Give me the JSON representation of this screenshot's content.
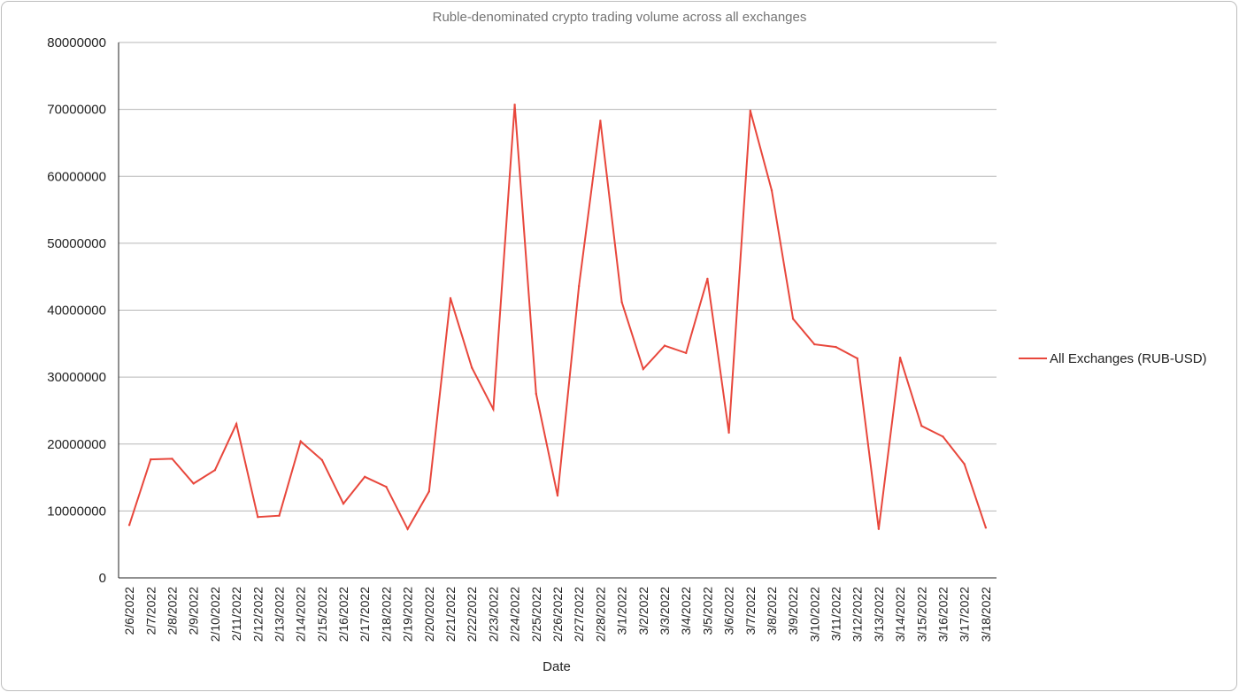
{
  "chart_data": {
    "type": "line",
    "title": "Ruble-denominated crypto trading volume across all exchanges",
    "xlabel": "Date",
    "ylabel": "",
    "ylim": [
      0,
      80000000
    ],
    "yticks": [
      "0",
      "10000000",
      "20000000",
      "30000000",
      "40000000",
      "50000000",
      "60000000",
      "70000000",
      "80000000"
    ],
    "grid": true,
    "legend_position": "right",
    "categories": [
      "2/6/2022",
      "2/7/2022",
      "2/8/2022",
      "2/9/2022",
      "2/10/2022",
      "2/11/2022",
      "2/12/2022",
      "2/13/2022",
      "2/14/2022",
      "2/15/2022",
      "2/16/2022",
      "2/17/2022",
      "2/18/2022",
      "2/19/2022",
      "2/20/2022",
      "2/21/2022",
      "2/22/2022",
      "2/23/2022",
      "2/24/2022",
      "2/25/2022",
      "2/26/2022",
      "2/27/2022",
      "2/28/2022",
      "3/1/2022",
      "3/2/2022",
      "3/3/2022",
      "3/4/2022",
      "3/5/2022",
      "3/6/2022",
      "3/7/2022",
      "3/8/2022",
      "3/9/2022",
      "3/10/2022",
      "3/11/2022",
      "3/12/2022",
      "3/13/2022",
      "3/14/2022",
      "3/15/2022",
      "3/16/2022",
      "3/17/2022",
      "3/18/2022"
    ],
    "series": [
      {
        "name": "All Exchanges (RUB-USD)",
        "color": "#e8473c",
        "values": [
          7900000,
          17700000,
          17800000,
          14100000,
          16100000,
          23000000,
          9100000,
          9300000,
          20400000,
          17600000,
          11100000,
          15100000,
          13600000,
          7300000,
          12900000,
          41800000,
          31400000,
          25200000,
          70700000,
          27500000,
          12300000,
          43600000,
          68300000,
          41200000,
          31200000,
          34700000,
          33600000,
          44700000,
          21700000,
          69800000,
          57900000,
          38700000,
          34900000,
          34500000,
          32800000,
          7300000,
          32900000,
          22700000,
          21100000,
          17000000,
          7500000
        ]
      }
    ]
  }
}
